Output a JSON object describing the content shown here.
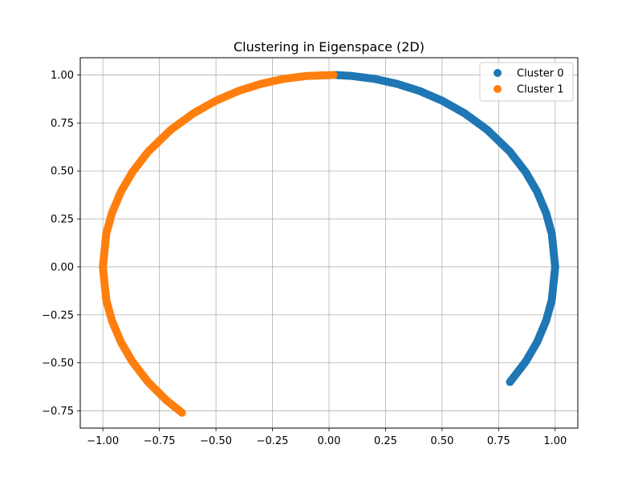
{
  "chart_data": {
    "type": "scatter",
    "title": "Clustering in Eigenspace (2D)",
    "xlabel": "",
    "ylabel": "",
    "xlim": [
      -1.1,
      1.1
    ],
    "ylim": [
      -0.84,
      1.09
    ],
    "grid": true,
    "legend_position": "top-right",
    "x_ticks": [
      {
        "value": -1.0,
        "label": "−1.00"
      },
      {
        "value": -0.75,
        "label": "−0.75"
      },
      {
        "value": -0.5,
        "label": "−0.50"
      },
      {
        "value": -0.25,
        "label": "−0.25"
      },
      {
        "value": 0.0,
        "label": "0.00"
      },
      {
        "value": 0.25,
        "label": "0.25"
      },
      {
        "value": 0.5,
        "label": "0.50"
      },
      {
        "value": 0.75,
        "label": "0.75"
      },
      {
        "value": 1.0,
        "label": "1.00"
      }
    ],
    "y_ticks": [
      {
        "value": -0.75,
        "label": "−0.75"
      },
      {
        "value": -0.5,
        "label": "−0.50"
      },
      {
        "value": -0.25,
        "label": "−0.25"
      },
      {
        "value": 0.0,
        "label": "0.00"
      },
      {
        "value": 0.25,
        "label": "0.25"
      },
      {
        "value": 0.5,
        "label": "0.50"
      },
      {
        "value": 0.75,
        "label": "0.75"
      },
      {
        "value": 1.0,
        "label": "1.00"
      }
    ],
    "series": [
      {
        "name": "Cluster 0",
        "color": "#1f77b4",
        "points": [
          [
            0.03,
            1.0
          ],
          [
            0.1,
            0.995
          ],
          [
            0.2,
            0.98
          ],
          [
            0.3,
            0.954
          ],
          [
            0.4,
            0.917
          ],
          [
            0.5,
            0.866
          ],
          [
            0.6,
            0.8
          ],
          [
            0.7,
            0.714
          ],
          [
            0.8,
            0.6
          ],
          [
            0.87,
            0.493
          ],
          [
            0.92,
            0.392
          ],
          [
            0.96,
            0.28
          ],
          [
            0.985,
            0.173
          ],
          [
            1.0,
            0.0
          ],
          [
            0.985,
            -0.173
          ],
          [
            0.96,
            -0.28
          ],
          [
            0.92,
            -0.392
          ],
          [
            0.87,
            -0.493
          ],
          [
            0.8,
            -0.6
          ]
        ]
      },
      {
        "name": "Cluster 1",
        "color": "#ff7f0e",
        "points": [
          [
            0.02,
            1.0
          ],
          [
            -0.1,
            0.995
          ],
          [
            -0.2,
            0.98
          ],
          [
            -0.3,
            0.954
          ],
          [
            -0.4,
            0.917
          ],
          [
            -0.5,
            0.866
          ],
          [
            -0.6,
            0.8
          ],
          [
            -0.7,
            0.714
          ],
          [
            -0.8,
            0.6
          ],
          [
            -0.87,
            0.493
          ],
          [
            -0.92,
            0.392
          ],
          [
            -0.96,
            0.28
          ],
          [
            -0.985,
            0.173
          ],
          [
            -1.0,
            0.0
          ],
          [
            -0.985,
            -0.173
          ],
          [
            -0.96,
            -0.28
          ],
          [
            -0.92,
            -0.392
          ],
          [
            -0.87,
            -0.493
          ],
          [
            -0.8,
            -0.6
          ],
          [
            -0.72,
            -0.694
          ],
          [
            -0.65,
            -0.76
          ]
        ]
      }
    ]
  }
}
